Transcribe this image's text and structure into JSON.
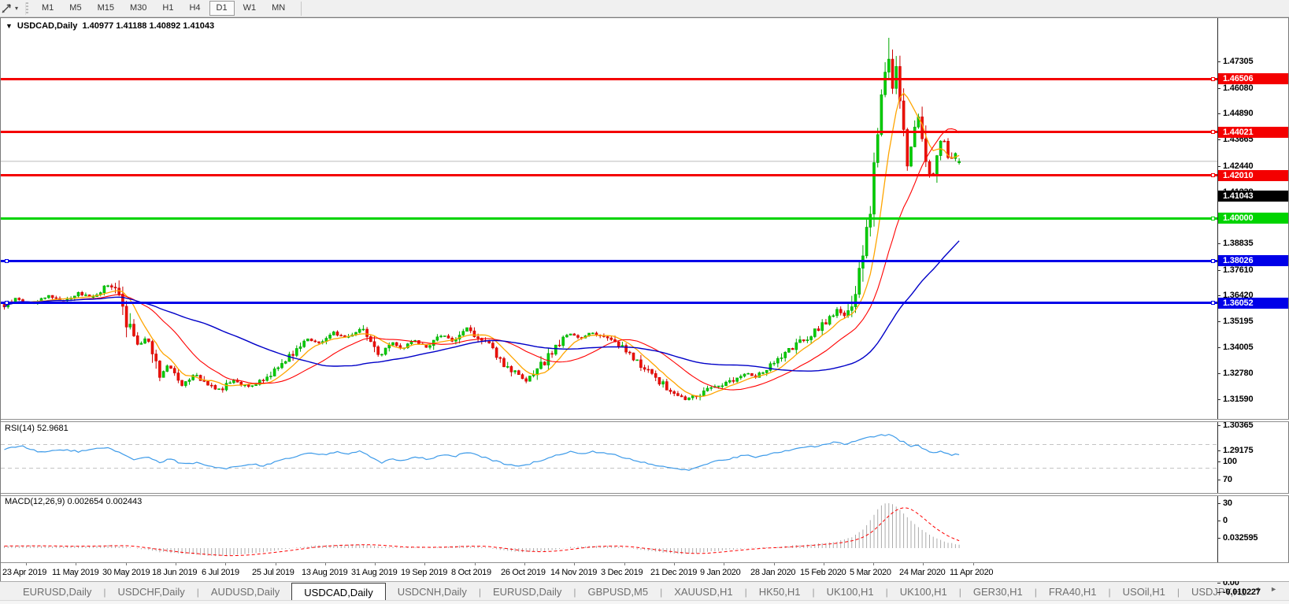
{
  "toolbar": {
    "timeframes": [
      "M1",
      "M5",
      "M15",
      "M30",
      "H1",
      "H4",
      "D1",
      "W1",
      "MN"
    ],
    "active_timeframe": "D1",
    "dropdown_glyph": "▾"
  },
  "chart_header": {
    "collapse_glyph": "▼",
    "symbol": "USDCAD,Daily",
    "ohlc": "1.40977 1.41188 1.40892 1.41043"
  },
  "price_axis": {
    "ticks": [
      {
        "label": "1.47305",
        "price": 1.47305
      },
      {
        "label": "1.46080",
        "price": 1.4608
      },
      {
        "label": "1.44890",
        "price": 1.4489
      },
      {
        "label": "1.43665",
        "price": 1.43665
      },
      {
        "label": "1.42440",
        "price": 1.4244
      },
      {
        "label": "1.41238",
        "price": 1.41238,
        "hidden": true
      },
      {
        "label": "1.40037",
        "price": 1.40037,
        "hidden": true
      },
      {
        "label": "1.38835",
        "price": 1.38835
      },
      {
        "label": "1.37610",
        "price": 1.3761
      },
      {
        "label": "1.36420",
        "price": 1.3642
      },
      {
        "label": "1.35195",
        "price": 1.35195
      },
      {
        "label": "1.34005",
        "price": 1.34005
      },
      {
        "label": "1.32780",
        "price": 1.3278
      },
      {
        "label": "1.31590",
        "price": 1.3159
      },
      {
        "label": "1.30365",
        "price": 1.30365
      },
      {
        "label": "1.29175",
        "price": 1.29175
      }
    ]
  },
  "hlines": [
    {
      "label": "1.46506",
      "price": 1.46506,
      "color_key": "level_red",
      "left_handle": false
    },
    {
      "label": "1.44021",
      "price": 1.44021,
      "color_key": "level_red",
      "left_handle": false
    },
    {
      "label": "1.42010",
      "price": 1.4201,
      "color_key": "level_red",
      "left_handle": false
    },
    {
      "label": "1.40000",
      "price": 1.4,
      "color_key": "level_green",
      "left_handle": false
    },
    {
      "label": "1.38026",
      "price": 1.38026,
      "color_key": "level_blue",
      "left_handle": true
    },
    {
      "label": "1.36052",
      "price": 1.36052,
      "color_key": "level_blue",
      "left_handle": true
    }
  ],
  "current_price": {
    "label": "1.41043",
    "price": 1.41043
  },
  "panes": {
    "rsi": {
      "title": "RSI(14) 52.9681",
      "axis_labels": [
        {
          "label": "100",
          "value": 100
        },
        {
          "label": "70",
          "value": 70
        },
        {
          "label": "30",
          "value": 30
        },
        {
          "label": "0",
          "value": 0
        }
      ],
      "levels": [
        70,
        30
      ]
    },
    "macd": {
      "title": "MACD(12,26,9) 0.002654 0.002443",
      "axis_labels": [
        {
          "label": "0.032595",
          "value": 0.032595
        },
        {
          "label": "0.00",
          "value": 0
        },
        {
          "label": "-0.010227",
          "value": -0.010227
        }
      ]
    }
  },
  "date_axis": {
    "dates": [
      "23 Apr 2019",
      "11 May 2019",
      "30 May 2019",
      "18 Jun 2019",
      "6 Jul 2019",
      "25 Jul 2019",
      "13 Aug 2019",
      "31 Aug 2019",
      "19 Sep 2019",
      "8 Oct 2019",
      "26 Oct 2019",
      "14 Nov 2019",
      "3 Dec 2019",
      "21 Dec 2019",
      "9 Jan 2020",
      "28 Jan 2020",
      "15 Feb 2020",
      "5 Mar 2020",
      "24 Mar 2020",
      "11 Apr 2020"
    ]
  },
  "tabs": {
    "items": [
      "EURUSD,Daily",
      "USDCHF,Daily",
      "AUDUSD,Daily",
      "USDCAD,Daily",
      "USDCNH,Daily",
      "EURUSD,Daily",
      "GBPUSD,M5",
      "XAUUSD,H1",
      "HK50,H1",
      "UK100,H1",
      "UK100,H1",
      "GER30,H1",
      "FRA40,H1",
      "USOil,H1",
      "USDJPY,H1"
    ],
    "active_index": 3,
    "scroll_left": "◄",
    "scroll_right": "►"
  },
  "colors": {
    "bull": "#00CE00",
    "bull_border": "#00A800",
    "bear": "#EE1100",
    "bear_border": "#CC0000",
    "ma_fast": "#FFA500",
    "ma_mid": "#FF0000",
    "ma_slow": "#0000C8",
    "rsi_line": "#3E9BE9",
    "rsi_level": "#C3C3C3",
    "macd_hist": "#ABABAB",
    "macd_signal": "#FF0000",
    "level_red": "#F40000",
    "level_green": "#00D400",
    "level_blue": "#0000E8",
    "current_line": "#BBBBBB",
    "current_badge": "#000000"
  },
  "chart_data": {
    "type": "candlestick",
    "symbol": "USDCAD",
    "timeframe": "Daily",
    "visible_range": {
      "price_top": 1.47305,
      "price_bottom": 1.29175,
      "date_start": "23 Apr 2019",
      "date_end": "11 Apr 2020"
    },
    "last_candle": {
      "open": 1.40977,
      "high": 1.41188,
      "low": 1.40892,
      "close": 1.41043
    },
    "spike_high": 1.468,
    "indicators": {
      "ma_fast_period": 8,
      "ma_mid_period": 21,
      "ma_slow_period": 55,
      "rsi": "RSI(14)",
      "macd": "MACD(12,26,9)"
    },
    "price_keypoints": [
      [
        3,
        1.343
      ],
      [
        18,
        1.3465
      ],
      [
        38,
        1.344
      ],
      [
        58,
        1.348
      ],
      [
        78,
        1.3455
      ],
      [
        98,
        1.349
      ],
      [
        116,
        1.347
      ],
      [
        133,
        1.353
      ],
      [
        148,
        1.349
      ],
      [
        160,
        1.3345
      ],
      [
        172,
        1.324
      ],
      [
        185,
        1.3295
      ],
      [
        200,
        1.311
      ],
      [
        213,
        1.316
      ],
      [
        228,
        1.3065
      ],
      [
        245,
        1.312
      ],
      [
        262,
        1.306
      ],
      [
        278,
        1.304
      ],
      [
        295,
        1.309
      ],
      [
        312,
        1.305
      ],
      [
        330,
        1.308
      ],
      [
        348,
        1.314
      ],
      [
        368,
        1.321
      ],
      [
        388,
        1.328
      ],
      [
        405,
        1.3255
      ],
      [
        422,
        1.3305
      ],
      [
        438,
        1.328
      ],
      [
        455,
        1.333
      ],
      [
        468,
        1.327
      ],
      [
        480,
        1.3195
      ],
      [
        495,
        1.327
      ],
      [
        508,
        1.3225
      ],
      [
        522,
        1.327
      ],
      [
        540,
        1.324
      ],
      [
        558,
        1.3295
      ],
      [
        575,
        1.3265
      ],
      [
        590,
        1.333
      ],
      [
        605,
        1.3285
      ],
      [
        620,
        1.324
      ],
      [
        635,
        1.317
      ],
      [
        650,
        1.312
      ],
      [
        665,
        1.3075
      ],
      [
        680,
        1.313
      ],
      [
        695,
        1.32
      ],
      [
        710,
        1.327
      ],
      [
        722,
        1.33
      ],
      [
        735,
        1.328
      ],
      [
        748,
        1.331
      ],
      [
        762,
        1.329
      ],
      [
        778,
        1.327
      ],
      [
        792,
        1.322
      ],
      [
        806,
        1.317
      ],
      [
        820,
        1.313
      ],
      [
        835,
        1.308
      ],
      [
        850,
        1.303
      ],
      [
        868,
        1.2995
      ],
      [
        884,
        1.3015
      ],
      [
        900,
        1.305
      ],
      [
        915,
        1.3065
      ],
      [
        930,
        1.309
      ],
      [
        945,
        1.312
      ],
      [
        958,
        1.31
      ],
      [
        972,
        1.314
      ],
      [
        988,
        1.318
      ],
      [
        1002,
        1.323
      ],
      [
        1017,
        1.327
      ],
      [
        1032,
        1.331
      ],
      [
        1047,
        1.336
      ],
      [
        1060,
        1.341
      ],
      [
        1070,
        1.339
      ],
      [
        1080,
        1.345
      ],
      [
        1088,
        1.356
      ],
      [
        1096,
        1.37
      ],
      [
        1103,
        1.39
      ],
      [
        1109,
        1.412
      ],
      [
        1114,
        1.432
      ],
      [
        1119,
        1.446
      ],
      [
        1124,
        1.458
      ],
      [
        1128,
        1.463
      ],
      [
        1132,
        1.442
      ],
      [
        1136,
        1.455
      ],
      [
        1140,
        1.437
      ],
      [
        1145,
        1.422
      ],
      [
        1150,
        1.408
      ],
      [
        1155,
        1.418
      ],
      [
        1160,
        1.427
      ],
      [
        1165,
        1.432
      ],
      [
        1170,
        1.42
      ],
      [
        1175,
        1.41
      ],
      [
        1180,
        1.4
      ],
      [
        1185,
        1.408
      ],
      [
        1190,
        1.418
      ],
      [
        1195,
        1.423
      ],
      [
        1200,
        1.414
      ],
      [
        1205,
        1.409
      ],
      [
        1210,
        1.415
      ],
      [
        1216,
        1.41043
      ]
    ],
    "rsi_keypoints": [
      [
        3,
        62
      ],
      [
        25,
        67
      ],
      [
        50,
        57
      ],
      [
        75,
        62
      ],
      [
        100,
        58
      ],
      [
        133,
        65
      ],
      [
        150,
        55
      ],
      [
        165,
        45
      ],
      [
        185,
        50
      ],
      [
        200,
        40
      ],
      [
        215,
        46
      ],
      [
        230,
        36
      ],
      [
        250,
        40
      ],
      [
        268,
        32
      ],
      [
        285,
        30
      ],
      [
        300,
        33
      ],
      [
        315,
        38
      ],
      [
        330,
        34
      ],
      [
        350,
        42
      ],
      [
        370,
        48
      ],
      [
        390,
        55
      ],
      [
        410,
        52
      ],
      [
        425,
        58
      ],
      [
        440,
        55
      ],
      [
        455,
        60
      ],
      [
        470,
        48
      ],
      [
        482,
        38
      ],
      [
        495,
        47
      ],
      [
        510,
        42
      ],
      [
        525,
        49
      ],
      [
        542,
        45
      ],
      [
        558,
        53
      ],
      [
        575,
        50
      ],
      [
        590,
        57
      ],
      [
        605,
        51
      ],
      [
        622,
        44
      ],
      [
        638,
        38
      ],
      [
        655,
        32
      ],
      [
        672,
        38
      ],
      [
        690,
        46
      ],
      [
        708,
        54
      ],
      [
        722,
        58
      ],
      [
        738,
        54
      ],
      [
        752,
        58
      ],
      [
        766,
        55
      ],
      [
        780,
        52
      ],
      [
        795,
        46
      ],
      [
        810,
        41
      ],
      [
        825,
        37
      ],
      [
        840,
        32
      ],
      [
        856,
        28
      ],
      [
        872,
        26
      ],
      [
        886,
        32
      ],
      [
        900,
        40
      ],
      [
        916,
        44
      ],
      [
        930,
        48
      ],
      [
        945,
        52
      ],
      [
        958,
        49
      ],
      [
        972,
        53
      ],
      [
        988,
        57
      ],
      [
        1002,
        61
      ],
      [
        1017,
        64
      ],
      [
        1032,
        67
      ],
      [
        1047,
        71
      ],
      [
        1060,
        74
      ],
      [
        1070,
        69
      ],
      [
        1082,
        75
      ],
      [
        1095,
        80
      ],
      [
        1108,
        84
      ],
      [
        1120,
        86
      ],
      [
        1128,
        87
      ],
      [
        1136,
        80
      ],
      [
        1145,
        74
      ],
      [
        1153,
        66
      ],
      [
        1162,
        70
      ],
      [
        1172,
        62
      ],
      [
        1182,
        55
      ],
      [
        1192,
        60
      ],
      [
        1200,
        55
      ],
      [
        1208,
        52
      ],
      [
        1216,
        54
      ]
    ],
    "macd_keypoints": [
      [
        3,
        0.0015
      ],
      [
        30,
        0.0018
      ],
      [
        60,
        0.0012
      ],
      [
        90,
        0.0016
      ],
      [
        120,
        0.0014
      ],
      [
        140,
        0.0022
      ],
      [
        160,
        0.0008
      ],
      [
        180,
        -0.0008
      ],
      [
        200,
        -0.0028
      ],
      [
        220,
        -0.0035
      ],
      [
        240,
        -0.0045
      ],
      [
        260,
        -0.0052
      ],
      [
        280,
        -0.0058
      ],
      [
        300,
        -0.0048
      ],
      [
        320,
        -0.0036
      ],
      [
        340,
        -0.0024
      ],
      [
        360,
        -0.0008
      ],
      [
        380,
        0.0008
      ],
      [
        400,
        0.0018
      ],
      [
        420,
        0.0022
      ],
      [
        440,
        0.0024
      ],
      [
        460,
        0.0026
      ],
      [
        480,
        0.0012
      ],
      [
        500,
        0.0006
      ],
      [
        520,
        0.0008
      ],
      [
        540,
        0.0004
      ],
      [
        560,
        0.001
      ],
      [
        580,
        0.0016
      ],
      [
        600,
        0.0012
      ],
      [
        620,
        -0.0002
      ],
      [
        640,
        -0.0018
      ],
      [
        660,
        -0.003
      ],
      [
        680,
        -0.0026
      ],
      [
        700,
        -0.0012
      ],
      [
        720,
        0.0006
      ],
      [
        740,
        0.0014
      ],
      [
        760,
        0.0018
      ],
      [
        780,
        0.0012
      ],
      [
        800,
        -0.0002
      ],
      [
        820,
        -0.0018
      ],
      [
        840,
        -0.0032
      ],
      [
        860,
        -0.0042
      ],
      [
        880,
        -0.0038
      ],
      [
        900,
        -0.0026
      ],
      [
        920,
        -0.0014
      ],
      [
        940,
        -0.0004
      ],
      [
        960,
        0.0002
      ],
      [
        980,
        0.0008
      ],
      [
        1000,
        0.0016
      ],
      [
        1020,
        0.0024
      ],
      [
        1040,
        0.0034
      ],
      [
        1060,
        0.0048
      ],
      [
        1080,
        0.008
      ],
      [
        1095,
        0.014
      ],
      [
        1105,
        0.022
      ],
      [
        1112,
        0.028
      ],
      [
        1118,
        0.0315
      ],
      [
        1124,
        0.0326
      ],
      [
        1130,
        0.032
      ],
      [
        1138,
        0.029
      ],
      [
        1146,
        0.0245
      ],
      [
        1154,
        0.02
      ],
      [
        1162,
        0.016
      ],
      [
        1170,
        0.0125
      ],
      [
        1180,
        0.009
      ],
      [
        1190,
        0.0062
      ],
      [
        1200,
        0.0042
      ],
      [
        1208,
        0.0032
      ],
      [
        1216,
        0.0027
      ]
    ]
  }
}
